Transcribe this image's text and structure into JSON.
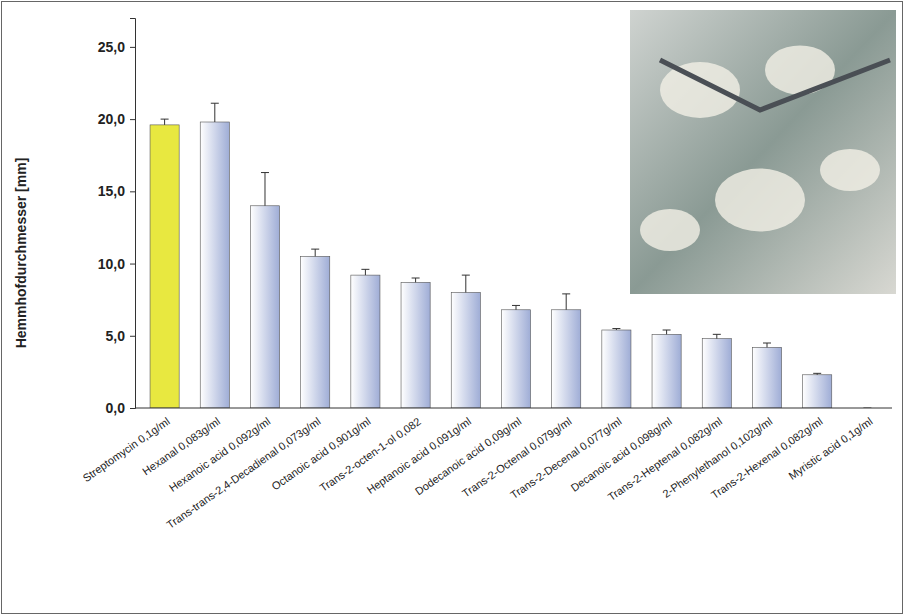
{
  "chart_data": {
    "type": "bar",
    "y_label": "Hemmhofdurchmesser [mm]",
    "categories": [
      "Streptomycin 0,1g/ml",
      "Hexanal 0,083g/ml",
      "Hexanoic acid 0,092g/ml",
      "Trans-trans-2,4-Decadienal 0,073g/ml",
      "Octanoic acid 0,901g/ml",
      "Trans-2-octen-1-ol 0,082",
      "Heptanoic acid 0,091g/ml",
      "Dodecanoic acid 0,09g/ml",
      "Trans-2-Octenal 0,079g/ml",
      "Trans-2-Decenal 0,077g/ml",
      "Decanoic acid 0,098g/ml",
      "Trans-2-Heptenal 0,082g/ml",
      "2-Phenylethanol 0,102g/ml",
      "Trans-2-Hexenal 0,082g/ml",
      "Myristic acid 0,1g/ml"
    ],
    "values": [
      19.6,
      19.8,
      14.0,
      10.5,
      9.2,
      8.7,
      8.0,
      6.8,
      6.8,
      5.4,
      5.1,
      4.8,
      4.2,
      2.3,
      0
    ],
    "errors": [
      0.4,
      1.3,
      2.3,
      0.5,
      0.4,
      0.3,
      1.2,
      0.3,
      1.1,
      0.1,
      0.3,
      0.3,
      0.3,
      0.1,
      0
    ],
    "colors": [
      "#e8e840",
      "#9fadd6",
      "#9fadd6",
      "#9fadd6",
      "#9fadd6",
      "#9fadd6",
      "#9fadd6",
      "#9fadd6",
      "#9fadd6",
      "#9fadd6",
      "#9fadd6",
      "#9fadd6",
      "#9fadd6",
      "#9fadd6",
      "#9fadd6"
    ],
    "ylim": [
      0,
      27
    ],
    "yticks": [
      {
        "value": 0,
        "label": "0,0"
      },
      {
        "value": 5,
        "label": "5,0"
      },
      {
        "value": 10,
        "label": "10,0"
      },
      {
        "value": 15,
        "label": "15,0"
      },
      {
        "value": 20,
        "label": "20,0"
      },
      {
        "value": 25,
        "label": "25,0"
      }
    ],
    "grid": false,
    "data_labels": false
  }
}
